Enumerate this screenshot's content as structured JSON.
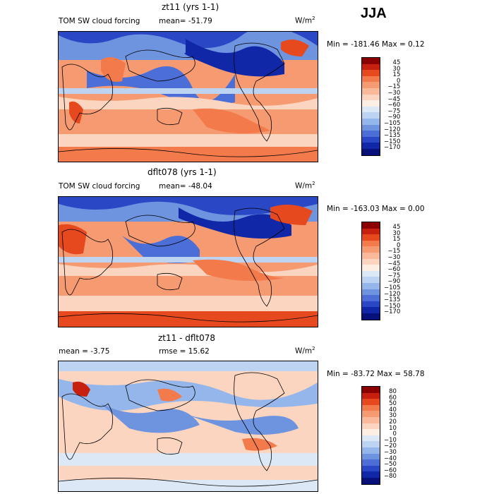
{
  "season": "JJA",
  "units_prefix": "W/m",
  "units_exp": "2",
  "panels": [
    {
      "title": "zt11 (yrs 1-1)",
      "label_left": "TOM SW cloud forcing",
      "stat": "mean=  -51.79",
      "minmax": "Min = -181.46 Max =    0.12"
    },
    {
      "title": "dflt078 (yrs 1-1)",
      "label_left": "TOM SW cloud forcing",
      "stat": "mean=  -48.04",
      "minmax": "Min = -163.03 Max =    0.00"
    },
    {
      "title": "zt11 - dflt078",
      "label_left": "mean =   -3.75",
      "stat": "rmse =   15.62",
      "minmax": "Min = -83.72 Max =  58.78"
    }
  ],
  "colorbars": {
    "abs": {
      "labels": [
        "45",
        "30",
        "15",
        "0",
        "−15",
        "−30",
        "−45",
        "−60",
        "−75",
        "−90",
        "−105",
        "−120",
        "−135",
        "−150",
        "−170"
      ],
      "colors": [
        "#8b0000",
        "#c8200e",
        "#e6491e",
        "#f27a4b",
        "#f69a71",
        "#f9b99a",
        "#fbd5bf",
        "#fdeee4",
        "#dde8f6",
        "#bcd4f2",
        "#95b6ea",
        "#6e94e0",
        "#4b6fd6",
        "#2a48c6",
        "#1028a8",
        "#08107a"
      ]
    },
    "diff": {
      "labels": [
        "80",
        "60",
        "50",
        "40",
        "30",
        "20",
        "10",
        "0",
        "−10",
        "−20",
        "−30",
        "−40",
        "−50",
        "−60",
        "−80"
      ],
      "colors": [
        "#8b0000",
        "#c8200e",
        "#e6491e",
        "#f27a4b",
        "#f69a71",
        "#f9b99a",
        "#fbd5bf",
        "#fdeee4",
        "#dde8f6",
        "#bcd4f2",
        "#95b6ea",
        "#6e94e0",
        "#4b6fd6",
        "#2a48c6",
        "#1028a8",
        "#08107a"
      ]
    }
  },
  "chart_data": {
    "type": "heatmap",
    "maps": [
      {
        "panel": "zt11 (yrs 1-1)",
        "min": -181.46,
        "max": 0.12,
        "mean": -51.79
      },
      {
        "panel": "dflt078 (yrs 1-1)",
        "min": -163.03,
        "max": 0.0,
        "mean": -48.04
      },
      {
        "panel": "zt11 - dflt078",
        "min": -83.72,
        "max": 58.78,
        "mean": -3.75,
        "rmse": 15.62
      }
    ]
  }
}
